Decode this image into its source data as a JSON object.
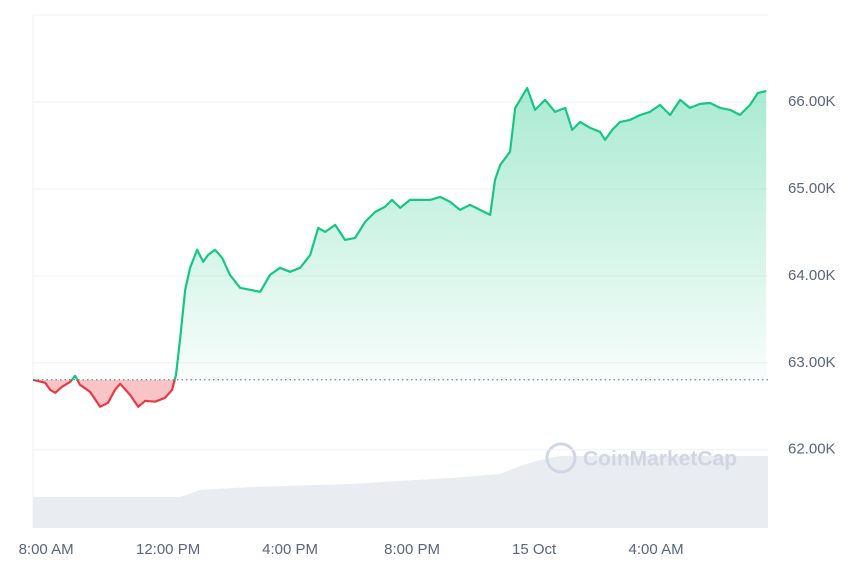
{
  "chart_data": {
    "type": "line",
    "watermark": "CoinMarketCap",
    "x": [
      -0.43,
      -0.03,
      0.13,
      0.3,
      0.52,
      0.79,
      0.95,
      1.11,
      1.44,
      1.77,
      2.03,
      2.26,
      2.43,
      2.75,
      3.02,
      3.25,
      3.57,
      3.9,
      4.13,
      4.26,
      4.39,
      4.56,
      4.72,
      4.95,
      5.15,
      5.31,
      5.54,
      5.77,
      6.03,
      6.36,
      6.69,
      7.02,
      7.34,
      7.67,
      8.0,
      8.33,
      8.66,
      8.92,
      9.15,
      9.48,
      9.8,
      10.13,
      10.46,
      10.79,
      11.11,
      11.34,
      11.61,
      11.93,
      12.26,
      12.59,
      12.92,
      13.25,
      13.57,
      13.9,
      14.23,
      14.56,
      14.72,
      14.89,
      15.21,
      15.38,
      15.54,
      15.77,
      16.03,
      16.36,
      16.69,
      17.02,
      17.25,
      17.51,
      17.84,
      18.16,
      18.33,
      18.56,
      18.82,
      19.15,
      19.48,
      19.8,
      20.13,
      20.46,
      20.79,
      21.11,
      21.44,
      21.77,
      22.1,
      22.43,
      22.75,
      23.08,
      23.34,
      23.61
    ],
    "series": [
      {
        "name": "Price",
        "color": "#16c784",
        "negative_color": "#ea3943",
        "values": [
          62805,
          62770,
          62690,
          62655,
          62724,
          62782,
          62851,
          62747,
          62667,
          62494,
          62540,
          62690,
          62759,
          62632,
          62494,
          62563,
          62552,
          62598,
          62690,
          62862,
          63264,
          63839,
          64092,
          64299,
          64161,
          64241,
          64299,
          64207,
          64011,
          63862,
          63839,
          63816,
          64011,
          64092,
          64046,
          64092,
          64241,
          64552,
          64506,
          64586,
          64414,
          64437,
          64621,
          64736,
          64793,
          64874,
          64782,
          64874,
          64874,
          64874,
          64908,
          64851,
          64759,
          64816,
          64759,
          64701,
          65103,
          65276,
          65425,
          65931,
          66023,
          66161,
          65908,
          66023,
          65885,
          65931,
          65678,
          65770,
          65701,
          65655,
          65563,
          65678,
          65770,
          65793,
          65850,
          65885,
          65966,
          65850,
          66023,
          65931,
          65977,
          65988,
          65931,
          65908,
          65850,
          65966,
          66103,
          66126
        ]
      }
    ],
    "baseline": 62805,
    "xlim": [
      -0.43,
      23.67
    ],
    "ylim": [
      61100,
      67000
    ],
    "xticks": [
      {
        "value": 0,
        "label": "8:00 AM"
      },
      {
        "value": 4,
        "label": "12:00 PM"
      },
      {
        "value": 8,
        "label": "4:00 PM"
      },
      {
        "value": 12,
        "label": "8:00 PM"
      },
      {
        "value": 16,
        "label": "15 Oct"
      },
      {
        "value": 20,
        "label": "4:00 AM"
      }
    ],
    "yticks": [
      {
        "value": 62000,
        "label": "62.00K"
      },
      {
        "value": 63000,
        "label": "63.00K"
      },
      {
        "value": 64000,
        "label": "64.00K"
      },
      {
        "value": 65000,
        "label": "65.00K"
      },
      {
        "value": 66000,
        "label": "66.00K"
      }
    ],
    "grid": true
  }
}
